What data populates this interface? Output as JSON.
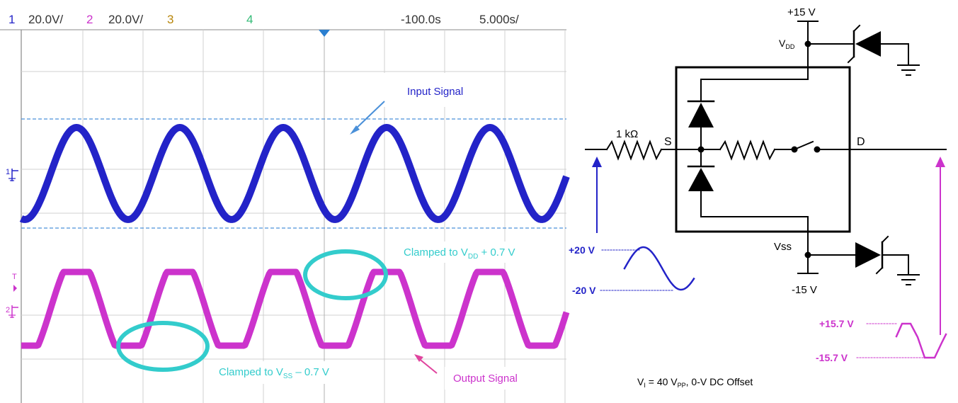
{
  "scope": {
    "header": {
      "ch1_num": "1",
      "ch1_scale": "20.0V/",
      "ch2_num": "2",
      "ch2_scale": "20.0V/",
      "ch3_num": "3",
      "ch4_num": "4",
      "offset": "-100.0s",
      "timebase": "5.000s/"
    },
    "annotations": {
      "input_signal": "Input Signal",
      "output_signal": "Output Signal",
      "clamp_vdd_prefix": "Clamped to V",
      "clamp_vdd_sub": "DD",
      "clamp_vdd_suffix": " + 0.7 V",
      "clamp_vss_prefix": "Clamped to V",
      "clamp_vss_sub": "SS",
      "clamp_vss_suffix": " – 0.7 V"
    },
    "markers": {
      "ch1": "1",
      "trigger": "T",
      "ch2": "2"
    },
    "colors": {
      "input": "#2323c8",
      "output": "#cc33cc",
      "clamp": "#33cccc",
      "ch3": "#b8860b",
      "ch4": "#33bb77",
      "grid": "#cfcfcf",
      "ref": "#4a90d9"
    }
  },
  "schematic": {
    "vdd_supply": "+15 V",
    "vdd_prefix": "V",
    "vdd_sub": "DD",
    "vss_label": "Vss",
    "vss_supply": "-15 V",
    "resistor": "1 kΩ",
    "source": "S",
    "drain": "D",
    "input_pos": "+20 V",
    "input_neg": "-20 V",
    "output_pos": "+15.7 V",
    "output_neg": "-15.7 V",
    "cond_v": "V",
    "cond_i": "I",
    "cond_eq": " = 40 V",
    "cond_pp": "PP",
    "cond_rest": ", 0-V DC Offset"
  }
}
